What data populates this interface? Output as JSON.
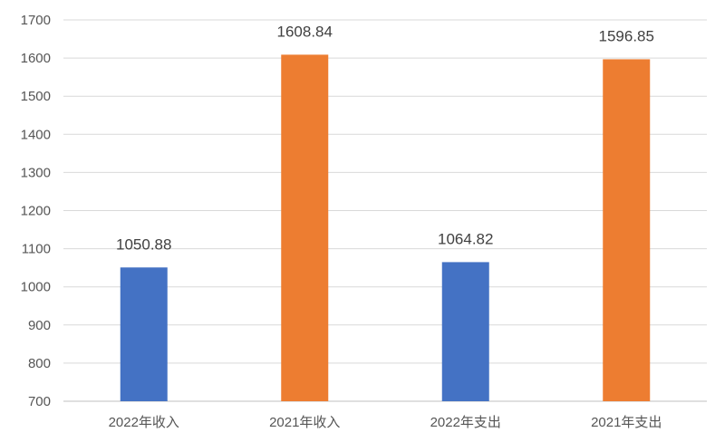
{
  "chart_data": {
    "type": "bar",
    "categories": [
      "2022年收入",
      "2021年收入",
      "2022年支出",
      "2021年支出"
    ],
    "values": [
      1050.88,
      1608.84,
      1064.82,
      1596.85
    ],
    "data_labels": [
      "1050.88",
      "1608.84",
      "1064.82",
      "1596.85"
    ],
    "bar_colors": [
      "#4472c4",
      "#ed7d31",
      "#4472c4",
      "#ed7d31"
    ],
    "ylim": [
      700,
      1700
    ],
    "yticks": [
      700,
      800,
      900,
      1000,
      1100,
      1200,
      1300,
      1400,
      1500,
      1600,
      1700
    ],
    "grid": true,
    "legend": "none",
    "title": "",
    "xlabel": "",
    "ylabel": ""
  }
}
